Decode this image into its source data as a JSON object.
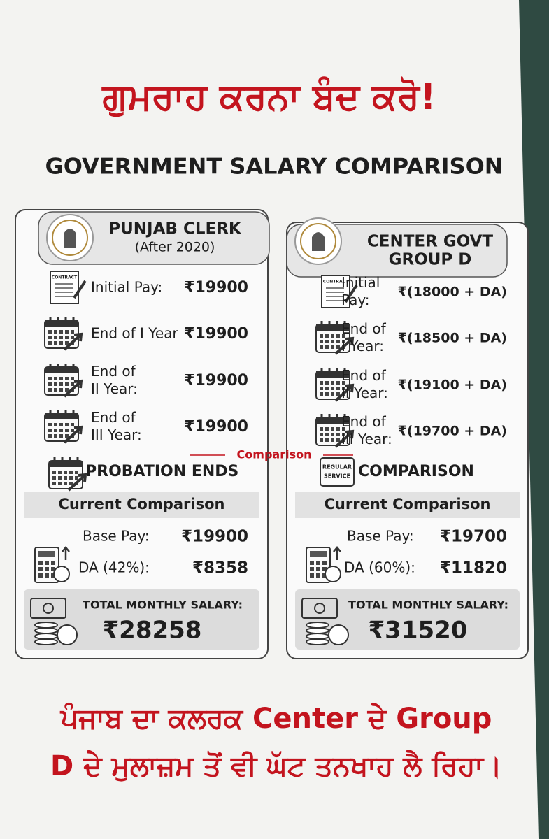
{
  "header": {
    "title": "ਗੁਮਰਾਹ ਕਰਨਾ ਬੰਦ ਕਰੋ!",
    "subtitle": "GOVERNMENT SALARY COMPARISON"
  },
  "cards": [
    {
      "title": [
        "PUNJAB CLERK",
        "(After 2020)"
      ],
      "rows": [
        {
          "icon_label": "CONTRACT",
          "label": [
            "Initial Pay:"
          ],
          "value": "₹19900"
        },
        {
          "label": [
            "End of I Year"
          ],
          "value": "₹19900"
        },
        {
          "label": [
            "End of",
            "II Year:"
          ],
          "value": "₹19900"
        },
        {
          "label": [
            "End of",
            "III Year:"
          ],
          "value": "₹19900"
        }
      ],
      "milestone": {
        "label": "PROBATION ENDS"
      },
      "section": "Current Comparison",
      "base": {
        "label": "Base Pay:",
        "value": "₹19900"
      },
      "da": {
        "label": "DA (42%):",
        "value": "₹8358"
      },
      "total": {
        "label": "TOTAL MONTHLY SALARY:",
        "value": "₹28258"
      }
    },
    {
      "title": [
        "CENTER GOVT",
        "GROUP D"
      ],
      "rows": [
        {
          "icon_label": "CONTRACT",
          "label": [
            "Initial",
            "Pay:"
          ],
          "value": "₹(18000 + DA)"
        },
        {
          "label": [
            "End of",
            "I Year:"
          ],
          "value": "₹(18500 + DA)"
        },
        {
          "label": [
            "End of",
            "II Year:"
          ],
          "value": "₹(19100 + DA)"
        },
        {
          "label": [
            "End of",
            "III Year:"
          ],
          "value": "₹(19700 + DA)"
        }
      ],
      "milestone": {
        "icon_label": [
          "REGULAR",
          "SERVICE"
        ],
        "label": "COMPARISON"
      },
      "section": "Current Comparison",
      "base": {
        "label": "Base Pay:",
        "value": "₹19700"
      },
      "da": {
        "label": "DA (60%):",
        "value": "₹11820"
      },
      "total": {
        "label": "TOTAL MONTHLY SALARY:",
        "value": "₹31520"
      }
    }
  ],
  "divider": "Comparison",
  "footer": {
    "lines": [
      "ਪੰਜਾਬ ਦਾ ਕਲਰਕ Center ਦੇ Group",
      "D ਦੇ ਮੁਲਾਜ਼ਮ ਤੋਂ ਵੀ ਘੱਟ ਤਨਖਾਹ ਲੈ ਰਿਹਾ।"
    ]
  }
}
